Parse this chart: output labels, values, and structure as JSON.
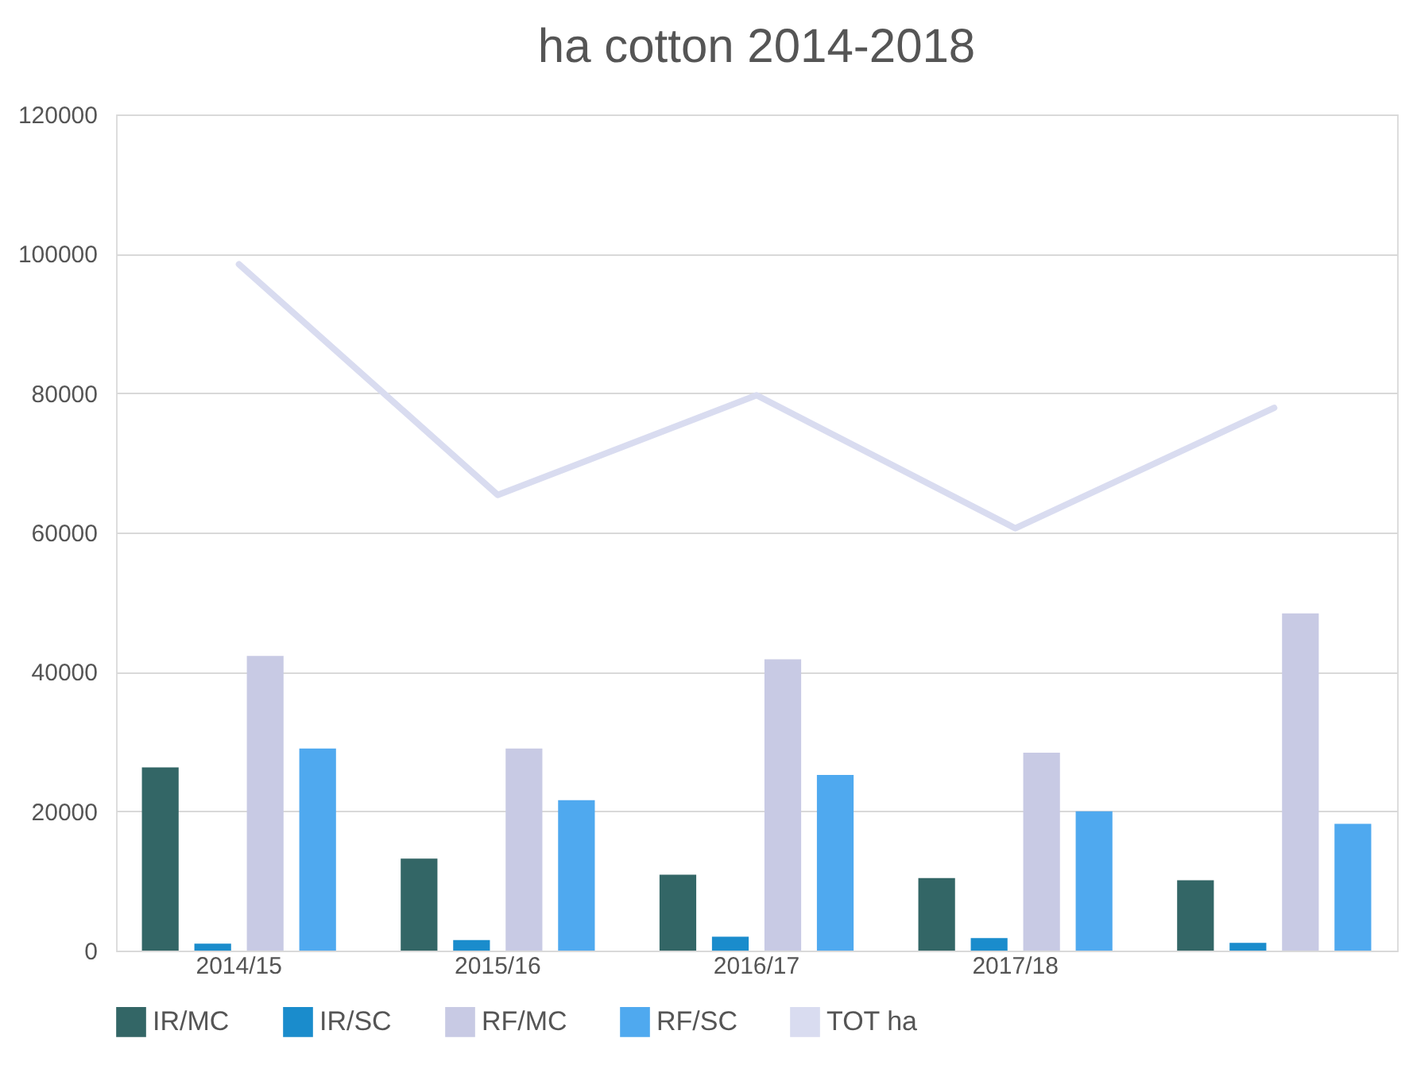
{
  "chart_data": {
    "type": "bar",
    "title": "ha cotton 2014-2018",
    "categories": [
      "2014/15",
      "2015/16",
      "2016/17",
      "2017/18",
      null
    ],
    "series": [
      {
        "name": "IR/MC",
        "color": "#336666",
        "values": [
          26300,
          13200,
          10900,
          10400,
          10100
        ]
      },
      {
        "name": "IR/SC",
        "color": "#1a8ccc",
        "values": [
          1000,
          1500,
          2000,
          1800,
          1100
        ]
      },
      {
        "name": "RF/MC",
        "color": "#c8cae4",
        "values": [
          42300,
          29000,
          41800,
          28400,
          48400
        ]
      },
      {
        "name": "RF/SC",
        "color": "#4fa9ef",
        "values": [
          29000,
          21600,
          25200,
          20000,
          18200
        ]
      },
      {
        "name": "TOT ha",
        "type": "line",
        "color": "#d9dcf0",
        "values": [
          98500,
          65400,
          79700,
          60600,
          77900
        ]
      }
    ],
    "ylim": [
      0,
      120000
    ],
    "yticks": [
      0,
      20000,
      40000,
      60000,
      80000,
      100000,
      120000
    ],
    "grid": "y",
    "legend": "bottom"
  }
}
